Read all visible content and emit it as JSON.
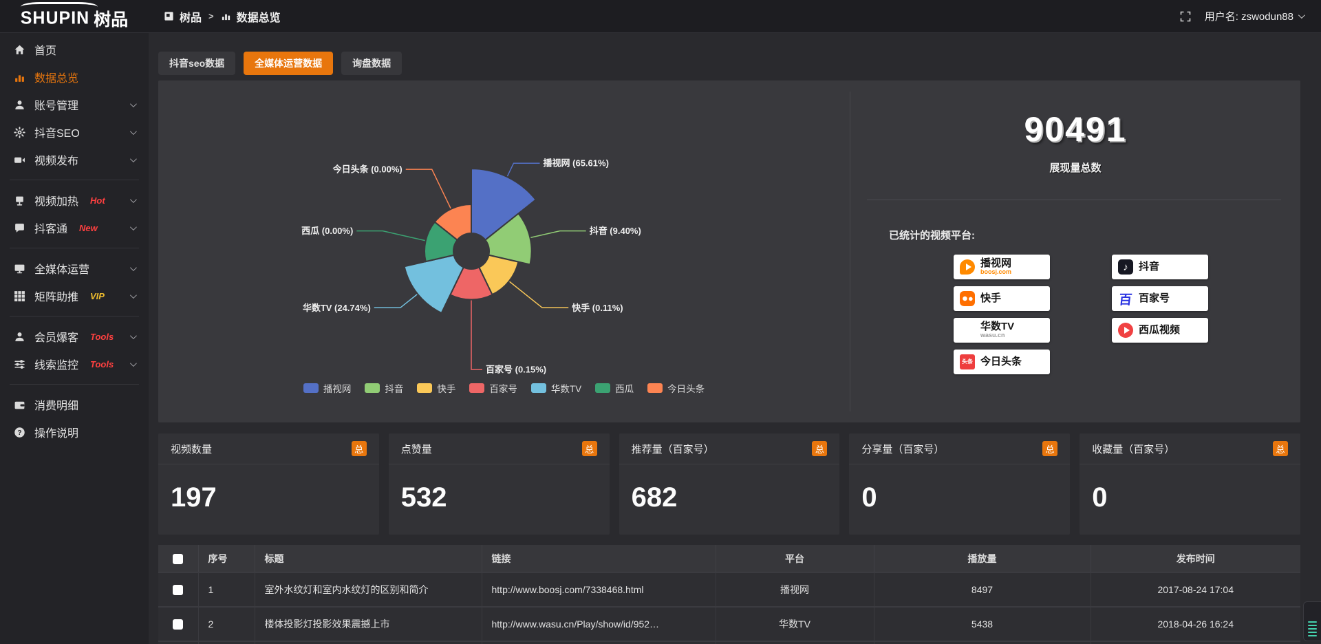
{
  "topbar": {
    "logo_main": "SHUPIN",
    "logo_cn": "树品",
    "breadcrumb": {
      "root": "树品",
      "sep": ">",
      "current": "数据总览"
    },
    "username": "用户名: zswodun88"
  },
  "sidebar": {
    "items": [
      {
        "key": "home",
        "label": "首页",
        "icon": "home-icon",
        "chevron": false,
        "active": false
      },
      {
        "key": "data-overview",
        "label": "数据总览",
        "icon": "bar-chart-icon",
        "chevron": false,
        "active": true
      },
      {
        "key": "account-manage",
        "label": "账号管理",
        "icon": "user-icon",
        "chevron": true
      },
      {
        "key": "douyin-seo",
        "label": "抖音SEO",
        "icon": "gear-icon",
        "chevron": true
      },
      {
        "key": "video-publish",
        "label": "视频发布",
        "icon": "video-icon",
        "chevron": true,
        "divider_after": true
      },
      {
        "key": "video-heat",
        "label": "视频加热",
        "icon": "heat-icon",
        "badge": "Hot",
        "badge_color": "red",
        "chevron": true
      },
      {
        "key": "douketong",
        "label": "抖客通",
        "icon": "chat-icon",
        "badge": "New",
        "badge_color": "red",
        "chevron": true,
        "divider_after": true
      },
      {
        "key": "media-operation",
        "label": "全媒体运营",
        "icon": "monitor-icon",
        "chevron": true
      },
      {
        "key": "matrix-boost",
        "label": "矩阵助推",
        "icon": "grid-icon",
        "badge": "VIP",
        "badge_color": "gold",
        "chevron": true,
        "divider_after": true
      },
      {
        "key": "member-baoke",
        "label": "会员爆客",
        "icon": "person-icon",
        "badge": "Tools",
        "badge_color": "red",
        "chevron": true
      },
      {
        "key": "clue-monitor",
        "label": "线索监控",
        "icon": "sliders-icon",
        "badge": "Tools",
        "badge_color": "red",
        "chevron": true,
        "divider_after": true
      },
      {
        "key": "consume-detail",
        "label": "消费明细",
        "icon": "wallet-icon",
        "chevron": false
      },
      {
        "key": "operation-guide",
        "label": "操作说明",
        "icon": "question-icon",
        "chevron": false
      }
    ]
  },
  "tabs": [
    {
      "key": "douyin-seo-data",
      "label": "抖音seo数据",
      "active": false
    },
    {
      "key": "media-operation-data",
      "label": "全媒体运营数据",
      "active": true
    },
    {
      "key": "inquiry-data",
      "label": "询盘数据",
      "active": false
    }
  ],
  "chart_data": {
    "type": "pie",
    "variant": "nightingale-rose",
    "legend_position": "bottom",
    "label_format": "{name} ({percent})",
    "items": [
      {
        "name": "播视网",
        "percent": 65.61,
        "percent_label": "65.61%",
        "color": "#5470c6"
      },
      {
        "name": "抖音",
        "percent": 9.4,
        "percent_label": "9.40%",
        "color": "#91cc75"
      },
      {
        "name": "快手",
        "percent": 0.11,
        "percent_label": "0.11%",
        "color": "#fac858"
      },
      {
        "name": "百家号",
        "percent": 0.15,
        "percent_label": "0.15%",
        "color": "#ee6666"
      },
      {
        "name": "华数TV",
        "percent": 24.74,
        "percent_label": "24.74%",
        "color": "#73c0de"
      },
      {
        "name": "西瓜",
        "percent": 0.0,
        "percent_label": "0.00%",
        "color": "#3ba272"
      },
      {
        "name": "今日头条",
        "percent": 0.0,
        "percent_label": "0.00%",
        "color": "#fc8452"
      }
    ]
  },
  "summary": {
    "total_value": "90491",
    "total_label": "展现量总数"
  },
  "platforms": {
    "label": "已统计的视频平台:",
    "columns": [
      [
        {
          "key": "boosj",
          "name": "播视网",
          "sub": "boosj.com",
          "sub_color": "#ff8a00"
        },
        {
          "key": "kuaishou",
          "name": "快手"
        },
        {
          "key": "wasu",
          "name": "华数TV",
          "sub": "wasu.cn",
          "sub_color": "#9a9a9a"
        },
        {
          "key": "toutiao",
          "name": "今日头条",
          "icon_text": "头条"
        }
      ],
      [
        {
          "key": "douyin",
          "name": "抖音",
          "icon_text": "♪"
        },
        {
          "key": "baijia",
          "name": "百家号",
          "icon_text": "百"
        },
        {
          "key": "xigua",
          "name": "西瓜视频"
        }
      ]
    ]
  },
  "stat_cards": [
    {
      "title": "视频数量",
      "badge": "总",
      "value": "197"
    },
    {
      "title": "点赞量",
      "badge": "总",
      "value": "532"
    },
    {
      "title": "推荐量（百家号）",
      "badge": "总",
      "value": "682"
    },
    {
      "title": "分享量（百家号）",
      "badge": "总",
      "value": "0"
    },
    {
      "title": "收藏量（百家号）",
      "badge": "总",
      "value": "0"
    }
  ],
  "table": {
    "columns": [
      "序号",
      "标题",
      "链接",
      "平台",
      "播放量",
      "发布时间"
    ],
    "rows": [
      {
        "index": "1",
        "title": "室外水纹灯和室内水纹灯的区别和简介",
        "link": "http://www.boosj.com/7338468.html",
        "platform": "播视网",
        "plays": "8497",
        "time": "2017-08-24 17:04"
      },
      {
        "index": "2",
        "title": "楼体投影灯投影效果震撼上市",
        "link": "http://www.wasu.cn/Play/show/id/952…",
        "platform": "华数TV",
        "plays": "5438",
        "time": "2018-04-26 16:24"
      }
    ]
  },
  "colors": {
    "accent_orange": "#e8760d",
    "badge_red": "#ff4040",
    "badge_gold": "#eebc2e",
    "panel_bg": "#39393d",
    "link_orange": "#d8842f",
    "widget_teal": "#45d2ae"
  }
}
